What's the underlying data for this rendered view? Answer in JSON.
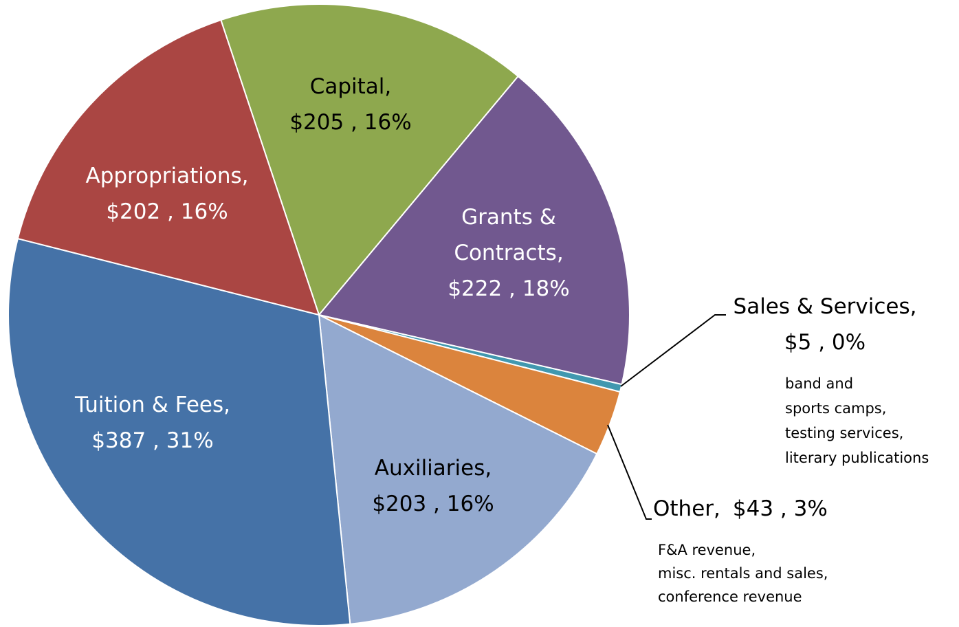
{
  "chart_data": {
    "type": "pie",
    "categories": [
      "Capital,",
      "Grants & Contracts,",
      "Sales & Services,",
      "Other,",
      "Auxiliaries,",
      "Tuition & Fees,",
      "Appropriations,"
    ],
    "values": [
      205,
      222,
      5,
      43,
      203,
      387,
      202
    ],
    "value_labels": [
      "$205 , 16%",
      "$222 , 18%",
      "$5 , 0%",
      "$43 , 3%",
      "$203 , 16%",
      "$387 , 31%",
      "$202 , 16%"
    ],
    "colors": [
      "#8ea84e",
      "#71588f",
      "#4198af",
      "#db843d",
      "#93a9cf",
      "#4572a7",
      "#aa4643"
    ],
    "annotations": [
      [
        "band and",
        "sports camps,",
        "testing services,",
        "literary publications"
      ],
      [
        "F&A revenue,",
        "misc. rentals and sales,",
        "conference revenue"
      ]
    ]
  }
}
